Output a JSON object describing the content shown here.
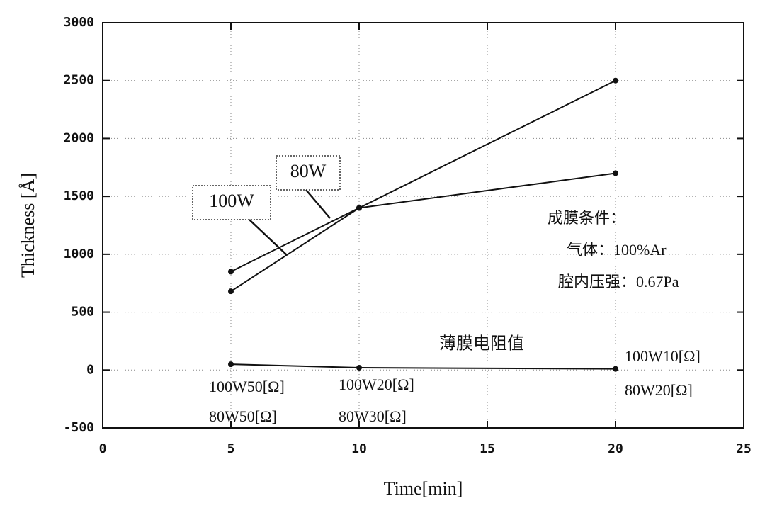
{
  "chart_data": {
    "type": "line",
    "x_label": "Time[min]",
    "y_label": "Thickness [Å]",
    "xlim": [
      0,
      25
    ],
    "xticks": [
      0,
      5,
      10,
      15,
      20,
      25
    ],
    "ylim": [
      -500,
      3000
    ],
    "yticks": [
      -500,
      0,
      500,
      1000,
      1500,
      2000,
      2500,
      3000
    ],
    "grid": true,
    "x": [
      5,
      10,
      20
    ],
    "series": [
      {
        "name": "100W",
        "color": "#111111",
        "values": [
          680,
          1400,
          2500
        ]
      },
      {
        "name": "80W",
        "color": "#111111",
        "values": [
          850,
          1400,
          1700
        ]
      },
      {
        "name": "薄膜电阻值",
        "color": "#111111",
        "values": [
          50,
          20,
          10
        ]
      }
    ],
    "annotations": [
      "成膜条件：",
      "气体：100%Ar",
      "腔内压强：0.67Pa",
      "100W50[Ω]",
      "80W50[Ω]",
      "100W20[Ω]",
      "80W30[Ω]",
      "100W10[Ω]",
      "80W20[Ω]"
    ]
  }
}
